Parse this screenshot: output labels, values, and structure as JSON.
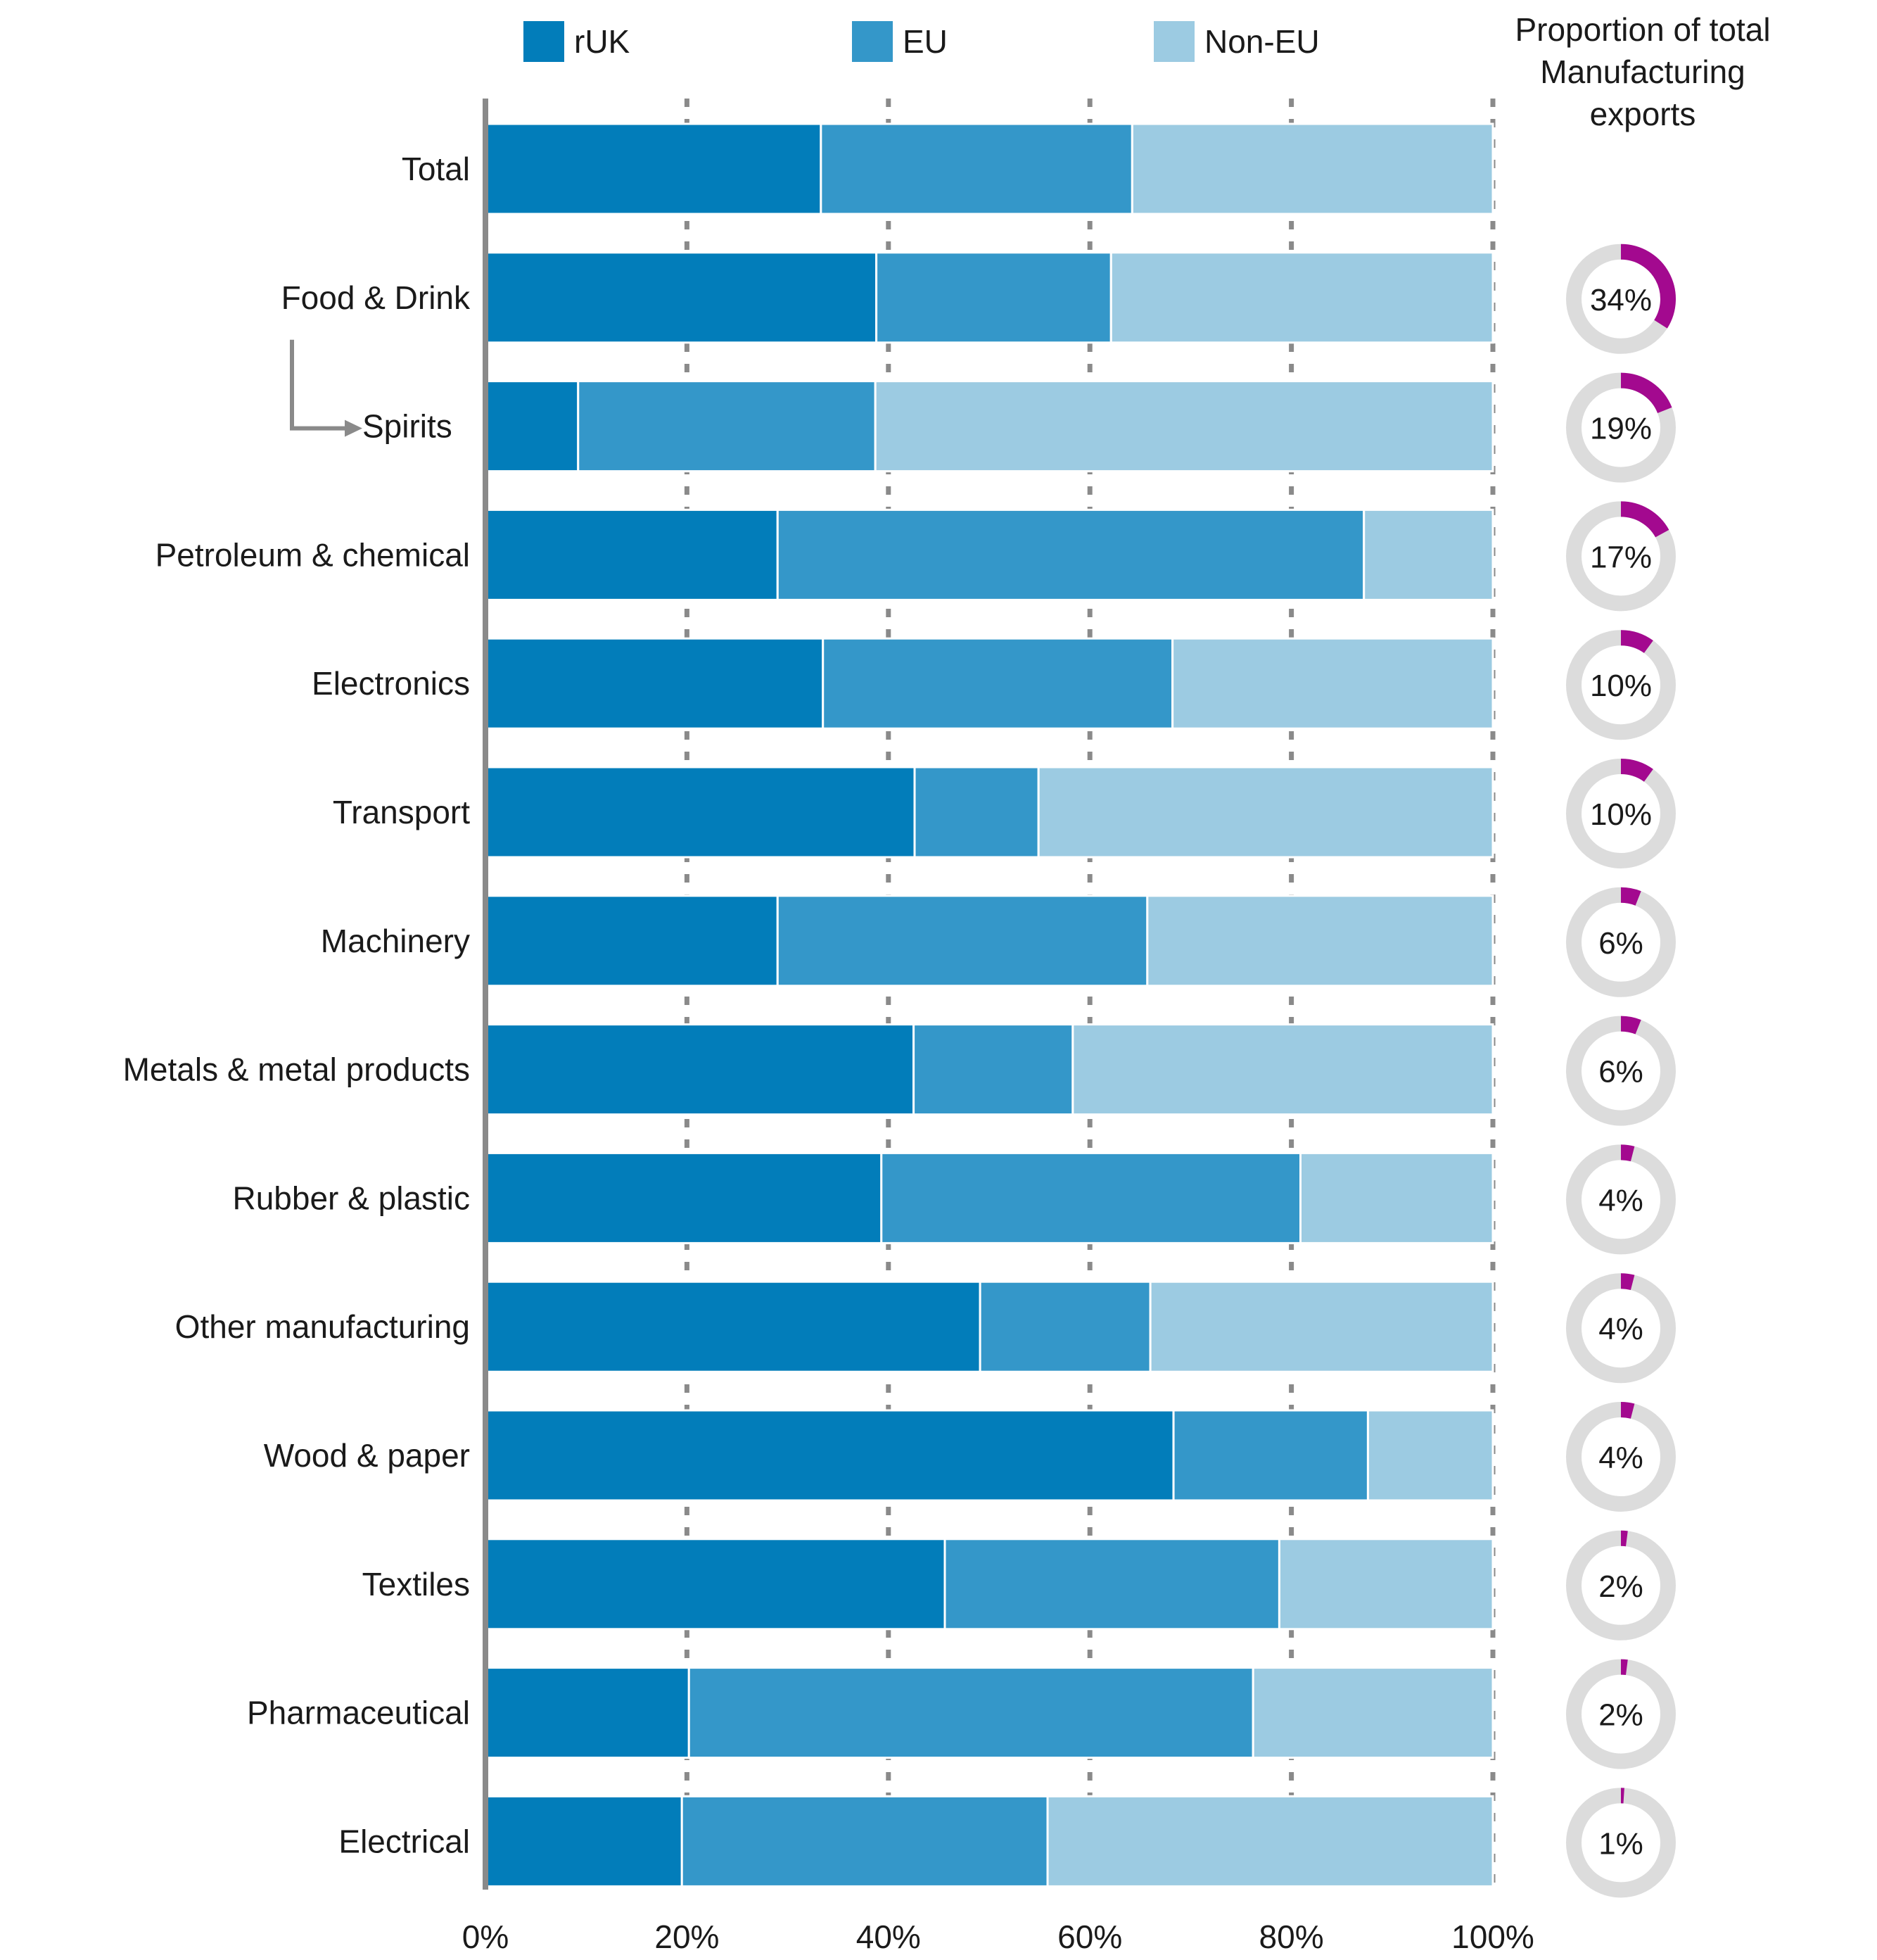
{
  "chart_data": {
    "type": "bar",
    "orientation": "horizontal",
    "stacked": "percent",
    "categories": [
      "Total",
      "Food & Drink",
      "Spirits",
      "Petroleum & chemical",
      "Electronics",
      "Transport",
      "Machinery",
      "Metals & metal products",
      "Rubber & plastic",
      "Other manufacturing",
      "Wood & paper",
      "Textiles",
      "Pharmaceutical",
      "Electrical"
    ],
    "sub_category_arrow": {
      "from": "Food & Drink",
      "to": "Spirits"
    },
    "series": [
      {
        "name": "rUK",
        "color": "#027dba",
        "values": [
          33.3,
          38.8,
          9.2,
          29.0,
          33.5,
          42.6,
          29.0,
          42.5,
          39.3,
          49.1,
          68.3,
          45.6,
          20.2,
          19.5
        ]
      },
      {
        "name": "EU",
        "color": "#3497c9",
        "values": [
          30.9,
          23.3,
          29.5,
          58.2,
          34.7,
          12.3,
          36.7,
          15.8,
          41.6,
          16.9,
          19.3,
          33.2,
          56.0,
          36.3
        ]
      },
      {
        "name": "Non-EU",
        "color": "#9ccbe2",
        "values": [
          35.8,
          37.9,
          61.3,
          12.8,
          31.8,
          45.1,
          34.3,
          41.7,
          19.1,
          34.0,
          12.4,
          21.2,
          23.8,
          44.2
        ]
      }
    ],
    "xlim": [
      0,
      100
    ],
    "x_ticks": [
      0,
      20,
      40,
      60,
      80,
      100
    ],
    "x_tick_labels": [
      "0%",
      "20%",
      "40%",
      "60%",
      "80%",
      "100%"
    ],
    "gridlines": "dotted-vertical",
    "legend": {
      "position": "top",
      "entries": [
        "rUK",
        "EU",
        "Non-EU"
      ]
    },
    "share_panel": {
      "title_lines": [
        "Proportion of total",
        "Manufacturing",
        "exports"
      ],
      "type": "donut",
      "ring_color": "#dcdcdc",
      "fill_color": "#a3098f",
      "categories": [
        "Food & Drink",
        "Spirits",
        "Petroleum & chemical",
        "Electronics",
        "Transport",
        "Machinery",
        "Metals & metal products",
        "Rubber & plastic",
        "Other manufacturing",
        "Wood & paper",
        "Textiles",
        "Pharmaceutical",
        "Electrical"
      ],
      "values": [
        34,
        19,
        17,
        10,
        10,
        6,
        6,
        4,
        4,
        4,
        2,
        2,
        1
      ],
      "labels": [
        "34%",
        "19%",
        "17%",
        "10%",
        "10%",
        "6%",
        "6%",
        "4%",
        "4%",
        "4%",
        "2%",
        "2%",
        "1%"
      ]
    }
  }
}
